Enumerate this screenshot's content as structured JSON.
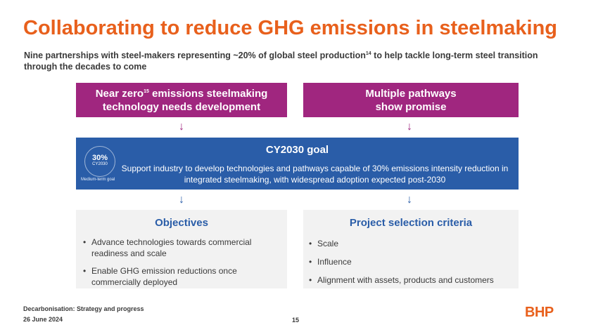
{
  "title": "Collaborating to reduce GHG emissions in steelmaking",
  "subtitle": {
    "text": "Nine partnerships with steel-makers representing ~20% of global steel production",
    "superscript": "14",
    "text_after": " to help tackle long-term steel transition through the decades to come"
  },
  "top_boxes": {
    "left": {
      "line1_prefix": "Near zero",
      "superscript": "15",
      "line1_suffix": " emissions steelmaking",
      "line2": "technology needs development"
    },
    "right": {
      "line1": "Multiple pathways",
      "line2": "show promise"
    }
  },
  "arrow_glyph": "↓",
  "goal": {
    "title": "CY2030 goal",
    "text": "Support industry to develop technologies and pathways capable of 30% emissions intensity reduction in integrated steelmaking, with widespread adoption expected post-2030",
    "badge_value": "30%",
    "badge_year": "CY2030",
    "badge_caption": "Medium-term goal"
  },
  "objectives": {
    "title": "Objectives",
    "items": [
      "Advance technologies towards commercial readiness and scale",
      "Enable GHG emission reductions once commercially deployed"
    ]
  },
  "criteria": {
    "title": "Project selection criteria",
    "items": [
      "Scale",
      "Influence",
      "Alignment with assets, products and customers"
    ]
  },
  "footer": {
    "title": "Decarbonisation: Strategy and progress",
    "date": "26 June 2024",
    "page": "15",
    "logo": "BHP"
  },
  "colors": {
    "orange": "#E8601C",
    "purple": "#A0267F",
    "blue": "#2A5DA8",
    "panel": "#f2f2f2"
  }
}
